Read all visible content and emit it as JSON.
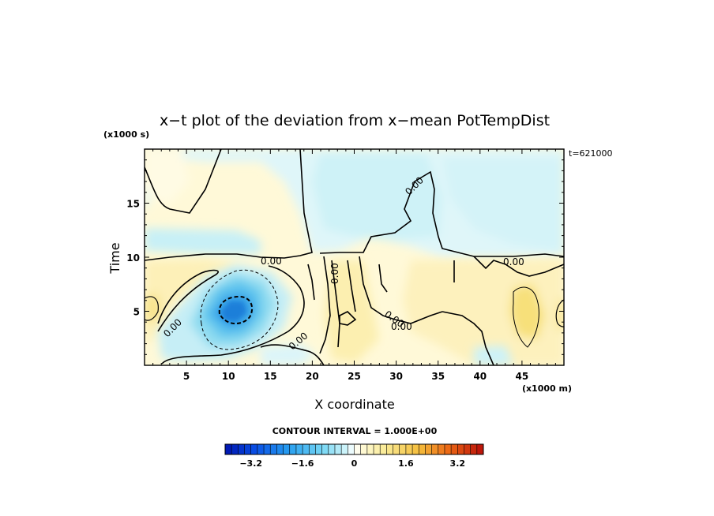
{
  "chart_data": {
    "type": "heatmap",
    "title": "x−t plot of the deviation from x−mean PotTempDist",
    "xlabel": "X coordinate",
    "ylabel": "Time",
    "x_unit": "(x1000 m)",
    "y_unit": "(x1000 s)",
    "time_stamp": "t=621000",
    "xlim": [
      0,
      50
    ],
    "ylim": [
      0,
      20
    ],
    "x_ticks": [
      5,
      10,
      15,
      20,
      25,
      30,
      35,
      40,
      45
    ],
    "y_ticks": [
      5,
      10,
      15
    ],
    "contour_interval_label": "CONTOUR INTERVAL = 1.000E+00",
    "contour_labels": [
      "0.00",
      "0.00",
      "0.00",
      "0.00",
      "0.00",
      "0.00",
      "0.00",
      "0.00"
    ],
    "colorbar": {
      "min": -4,
      "max": 4,
      "step": 0.2,
      "tick_values": [
        -3.2,
        -1.6,
        0,
        1.6,
        3.2
      ],
      "tick_labels": [
        "−3.2",
        "−1.6",
        "0",
        "1.6",
        "3.2"
      ]
    },
    "features": [
      {
        "kind": "min",
        "x": 10.5,
        "t": 5,
        "value": -2.4
      },
      {
        "kind": "max",
        "x": 45.5,
        "t": 5,
        "value": 0.8
      }
    ]
  }
}
